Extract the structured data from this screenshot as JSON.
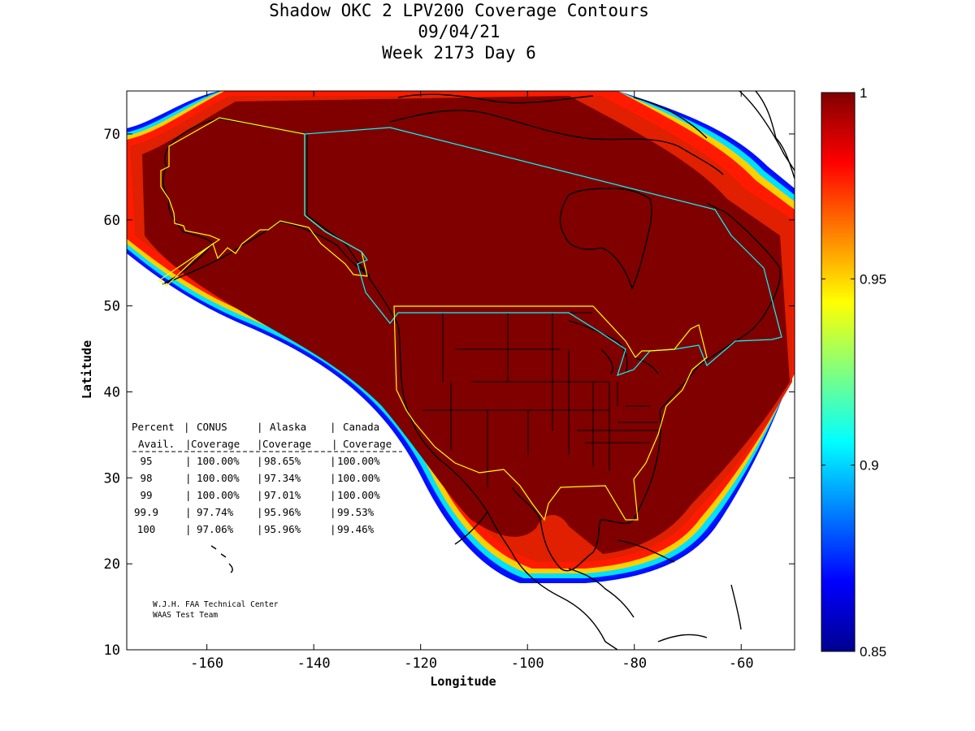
{
  "title": {
    "line1": "Shadow OKC 2 LPV200 Coverage Contours",
    "line2": "09/04/21",
    "line3": "Week 2173 Day 6"
  },
  "axes": {
    "xlabel": "Longitude",
    "ylabel": "Latitude",
    "xlim": [
      -175,
      -50
    ],
    "ylim": [
      10,
      75
    ],
    "xticks": [
      -160,
      -140,
      -120,
      -100,
      -80,
      -60
    ],
    "yticks": [
      10,
      20,
      30,
      40,
      50,
      60,
      70
    ],
    "xtick_labels": [
      "-160",
      "-140",
      "-120",
      "-100",
      "-80",
      "-60"
    ],
    "ytick_labels": [
      "10",
      "20",
      "30",
      "40",
      "50",
      "60",
      "70"
    ]
  },
  "colorbar": {
    "min": 0.85,
    "max": 1,
    "colormap": "jet",
    "ticks": [
      0.85,
      0.9,
      0.95,
      1
    ],
    "tick_labels": [
      "0.85",
      "0.9",
      "0.95",
      "1"
    ]
  },
  "colors": {
    "full_coverage": "#800000",
    "alaska_boundary": "#ffff00",
    "canada_boundary": "#00ffff",
    "coastline": "#000000"
  },
  "coverage_table": {
    "header1": [
      "Percent",
      "CONUS",
      "Alaska",
      "Canada"
    ],
    "header2": [
      "Avail.",
      "Coverage",
      "Coverage",
      "Coverage"
    ],
    "rows": [
      [
        "95",
        "100.00%",
        "98.65%",
        "100.00%"
      ],
      [
        "98",
        "100.00%",
        "97.34%",
        "100.00%"
      ],
      [
        "99",
        "100.00%",
        "97.01%",
        "100.00%"
      ],
      [
        "99.9",
        "97.74%",
        "95.96%",
        "99.53%"
      ],
      [
        "100",
        "97.06%",
        "95.96%",
        "99.46%"
      ]
    ]
  },
  "credits": {
    "line1": "W.J.H. FAA Technical Center",
    "line2": "WAAS Test Team"
  }
}
